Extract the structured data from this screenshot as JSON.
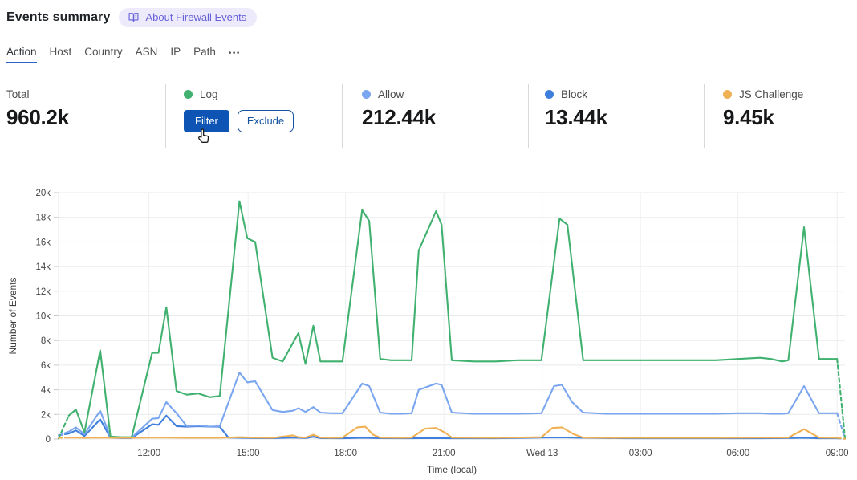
{
  "header": {
    "title": "Events summary",
    "about_label": "About Firewall Events"
  },
  "tabs": {
    "items": [
      {
        "label": "Action",
        "active": true
      },
      {
        "label": "Host"
      },
      {
        "label": "Country"
      },
      {
        "label": "ASN"
      },
      {
        "label": "IP"
      },
      {
        "label": "Path"
      }
    ],
    "more_label": "•••"
  },
  "stats": {
    "cards": [
      {
        "label": "Total",
        "value": "960.2k"
      },
      {
        "label": "Log",
        "dot_color": "#40b16f",
        "filter_label": "Filter",
        "exclude_label": "Exclude"
      },
      {
        "label": "Allow",
        "dot_color": "#7aa6f0",
        "value": "212.44k"
      },
      {
        "label": "Block",
        "dot_color": "#3e7fde",
        "value": "13.44k"
      },
      {
        "label": "JS Challenge",
        "dot_color": "#f0b054",
        "value": "9.45k"
      }
    ]
  },
  "chart_data": {
    "type": "line",
    "title": "",
    "xlabel": "Time (local)",
    "ylabel": "Number of Events",
    "value_unit": "thousands of events",
    "ylim_k": [
      0,
      20
    ],
    "grid": true,
    "y_ticks": [
      {
        "v": 0,
        "label": "0"
      },
      {
        "v": 2,
        "label": "2k"
      },
      {
        "v": 4,
        "label": "4k"
      },
      {
        "v": 6,
        "label": "6k"
      },
      {
        "v": 8,
        "label": "8k"
      },
      {
        "v": 10,
        "label": "10k"
      },
      {
        "v": 12,
        "label": "12k"
      },
      {
        "v": 14,
        "label": "14k"
      },
      {
        "v": 16,
        "label": "16k"
      },
      {
        "v": 18,
        "label": "18k"
      },
      {
        "v": 20,
        "label": "20k"
      }
    ],
    "x_ticks": [
      {
        "label": "12:00",
        "pos": 0.115
      },
      {
        "label": "15:00",
        "pos": 0.241
      },
      {
        "label": "18:00",
        "pos": 0.365
      },
      {
        "label": "21:00",
        "pos": 0.49
      },
      {
        "label": "Wed 13",
        "pos": 0.615
      },
      {
        "label": "03:00",
        "pos": 0.74
      },
      {
        "label": "06:00",
        "pos": 0.864
      },
      {
        "label": "09:00",
        "pos": 0.99
      }
    ],
    "series": [
      {
        "name": "Log",
        "color": "#40b16f",
        "z": 2,
        "dashed_ends": true,
        "points": [
          [
            0,
            0.05
          ],
          [
            0.013,
            1.9
          ],
          [
            0.022,
            2.4
          ],
          [
            0.033,
            0.55
          ],
          [
            0.053,
            7.2
          ],
          [
            0.066,
            0.2
          ],
          [
            0.08,
            0.15
          ],
          [
            0.093,
            0.15
          ],
          [
            0.119,
            7.0
          ],
          [
            0.127,
            7.0
          ],
          [
            0.137,
            10.7
          ],
          [
            0.15,
            3.9
          ],
          [
            0.163,
            3.6
          ],
          [
            0.178,
            3.7
          ],
          [
            0.192,
            3.4
          ],
          [
            0.205,
            3.5
          ],
          [
            0.23,
            19.3
          ],
          [
            0.24,
            16.3
          ],
          [
            0.25,
            16.0
          ],
          [
            0.272,
            6.6
          ],
          [
            0.285,
            6.3
          ],
          [
            0.298,
            7.8
          ],
          [
            0.305,
            8.6
          ],
          [
            0.314,
            6.1
          ],
          [
            0.324,
            9.2
          ],
          [
            0.333,
            6.3
          ],
          [
            0.347,
            6.3
          ],
          [
            0.361,
            6.3
          ],
          [
            0.386,
            18.6
          ],
          [
            0.395,
            17.7
          ],
          [
            0.409,
            6.5
          ],
          [
            0.423,
            6.4
          ],
          [
            0.437,
            6.4
          ],
          [
            0.449,
            6.4
          ],
          [
            0.458,
            15.3
          ],
          [
            0.48,
            18.5
          ],
          [
            0.487,
            17.4
          ],
          [
            0.5,
            6.4
          ],
          [
            0.528,
            6.3
          ],
          [
            0.556,
            6.3
          ],
          [
            0.584,
            6.4
          ],
          [
            0.614,
            6.4
          ],
          [
            0.637,
            17.9
          ],
          [
            0.647,
            17.4
          ],
          [
            0.667,
            6.4
          ],
          [
            0.696,
            6.4
          ],
          [
            0.723,
            6.4
          ],
          [
            0.752,
            6.4
          ],
          [
            0.78,
            6.4
          ],
          [
            0.808,
            6.4
          ],
          [
            0.836,
            6.4
          ],
          [
            0.864,
            6.5
          ],
          [
            0.892,
            6.6
          ],
          [
            0.906,
            6.5
          ],
          [
            0.92,
            6.3
          ],
          [
            0.928,
            6.4
          ],
          [
            0.948,
            17.2
          ],
          [
            0.967,
            6.5
          ],
          [
            0.99,
            6.5
          ],
          [
            1,
            0.1
          ]
        ]
      },
      {
        "name": "Allow",
        "color": "#7aa6f0",
        "z": 1,
        "dashed_ends": true,
        "points": [
          [
            0,
            0.3
          ],
          [
            0.013,
            0.6
          ],
          [
            0.022,
            0.95
          ],
          [
            0.033,
            0.4
          ],
          [
            0.053,
            2.3
          ],
          [
            0.066,
            0.15
          ],
          [
            0.08,
            0.12
          ],
          [
            0.093,
            0.12
          ],
          [
            0.119,
            1.65
          ],
          [
            0.127,
            1.7
          ],
          [
            0.137,
            3.0
          ],
          [
            0.15,
            2.1
          ],
          [
            0.163,
            1.05
          ],
          [
            0.178,
            1.1
          ],
          [
            0.192,
            1.0
          ],
          [
            0.205,
            1.05
          ],
          [
            0.23,
            5.4
          ],
          [
            0.24,
            4.6
          ],
          [
            0.25,
            4.7
          ],
          [
            0.272,
            2.35
          ],
          [
            0.285,
            2.2
          ],
          [
            0.298,
            2.3
          ],
          [
            0.305,
            2.5
          ],
          [
            0.314,
            2.2
          ],
          [
            0.324,
            2.6
          ],
          [
            0.333,
            2.15
          ],
          [
            0.347,
            2.1
          ],
          [
            0.361,
            2.1
          ],
          [
            0.386,
            4.5
          ],
          [
            0.395,
            4.3
          ],
          [
            0.409,
            2.15
          ],
          [
            0.423,
            2.05
          ],
          [
            0.437,
            2.05
          ],
          [
            0.449,
            2.1
          ],
          [
            0.458,
            4.0
          ],
          [
            0.48,
            4.5
          ],
          [
            0.487,
            4.4
          ],
          [
            0.5,
            2.15
          ],
          [
            0.528,
            2.05
          ],
          [
            0.556,
            2.05
          ],
          [
            0.584,
            2.05
          ],
          [
            0.614,
            2.1
          ],
          [
            0.63,
            4.3
          ],
          [
            0.64,
            4.4
          ],
          [
            0.653,
            3.0
          ],
          [
            0.667,
            2.15
          ],
          [
            0.696,
            2.05
          ],
          [
            0.723,
            2.05
          ],
          [
            0.752,
            2.05
          ],
          [
            0.78,
            2.05
          ],
          [
            0.808,
            2.05
          ],
          [
            0.836,
            2.05
          ],
          [
            0.864,
            2.1
          ],
          [
            0.892,
            2.1
          ],
          [
            0.906,
            2.05
          ],
          [
            0.92,
            2.05
          ],
          [
            0.928,
            2.1
          ],
          [
            0.948,
            4.3
          ],
          [
            0.967,
            2.1
          ],
          [
            0.99,
            2.1
          ],
          [
            1,
            0.05
          ]
        ]
      },
      {
        "name": "Block",
        "color": "#3e7fde",
        "z": 0,
        "dashed_ends": true,
        "points": [
          [
            0,
            0.3
          ],
          [
            0.013,
            0.45
          ],
          [
            0.022,
            0.7
          ],
          [
            0.033,
            0.25
          ],
          [
            0.053,
            1.6
          ],
          [
            0.066,
            0.1
          ],
          [
            0.08,
            0.08
          ],
          [
            0.093,
            0.08
          ],
          [
            0.119,
            1.2
          ],
          [
            0.127,
            1.15
          ],
          [
            0.137,
            1.9
          ],
          [
            0.15,
            1.05
          ],
          [
            0.163,
            1.0
          ],
          [
            0.178,
            1.05
          ],
          [
            0.192,
            1.0
          ],
          [
            0.205,
            1.0
          ],
          [
            0.216,
            0.12
          ],
          [
            0.23,
            0.1
          ],
          [
            0.25,
            0.08
          ],
          [
            0.272,
            0.07
          ],
          [
            0.298,
            0.12
          ],
          [
            0.305,
            0.1
          ],
          [
            0.314,
            0.08
          ],
          [
            0.324,
            0.18
          ],
          [
            0.333,
            0.07
          ],
          [
            0.361,
            0.06
          ],
          [
            0.386,
            0.1
          ],
          [
            0.409,
            0.07
          ],
          [
            0.437,
            0.06
          ],
          [
            0.48,
            0.08
          ],
          [
            0.5,
            0.06
          ],
          [
            0.556,
            0.06
          ],
          [
            0.614,
            0.12
          ],
          [
            0.637,
            0.13
          ],
          [
            0.667,
            0.1
          ],
          [
            0.723,
            0.06
          ],
          [
            0.78,
            0.06
          ],
          [
            0.836,
            0.06
          ],
          [
            0.892,
            0.06
          ],
          [
            0.928,
            0.08
          ],
          [
            0.948,
            0.1
          ],
          [
            0.967,
            0.06
          ],
          [
            0.99,
            0.06
          ],
          [
            1,
            0.02
          ]
        ]
      },
      {
        "name": "JS Challenge",
        "color": "#f0b054",
        "z": 3,
        "dashed_ends": true,
        "points": [
          [
            0,
            0.1
          ],
          [
            0.013,
            0.12
          ],
          [
            0.022,
            0.12
          ],
          [
            0.033,
            0.1
          ],
          [
            0.053,
            0.12
          ],
          [
            0.066,
            0.1
          ],
          [
            0.08,
            0.1
          ],
          [
            0.093,
            0.1
          ],
          [
            0.119,
            0.12
          ],
          [
            0.137,
            0.12
          ],
          [
            0.163,
            0.1
          ],
          [
            0.192,
            0.1
          ],
          [
            0.205,
            0.1
          ],
          [
            0.23,
            0.15
          ],
          [
            0.25,
            0.12
          ],
          [
            0.272,
            0.1
          ],
          [
            0.298,
            0.3
          ],
          [
            0.305,
            0.15
          ],
          [
            0.314,
            0.12
          ],
          [
            0.324,
            0.35
          ],
          [
            0.333,
            0.12
          ],
          [
            0.347,
            0.1
          ],
          [
            0.361,
            0.12
          ],
          [
            0.38,
            0.95
          ],
          [
            0.39,
            1.0
          ],
          [
            0.4,
            0.35
          ],
          [
            0.409,
            0.12
          ],
          [
            0.437,
            0.1
          ],
          [
            0.449,
            0.12
          ],
          [
            0.466,
            0.85
          ],
          [
            0.48,
            0.9
          ],
          [
            0.492,
            0.5
          ],
          [
            0.5,
            0.12
          ],
          [
            0.556,
            0.1
          ],
          [
            0.614,
            0.15
          ],
          [
            0.628,
            0.9
          ],
          [
            0.64,
            0.95
          ],
          [
            0.655,
            0.4
          ],
          [
            0.667,
            0.12
          ],
          [
            0.723,
            0.1
          ],
          [
            0.78,
            0.1
          ],
          [
            0.836,
            0.1
          ],
          [
            0.892,
            0.12
          ],
          [
            0.928,
            0.12
          ],
          [
            0.948,
            0.8
          ],
          [
            0.967,
            0.12
          ],
          [
            0.99,
            0.1
          ],
          [
            1,
            0.02
          ]
        ]
      }
    ]
  }
}
